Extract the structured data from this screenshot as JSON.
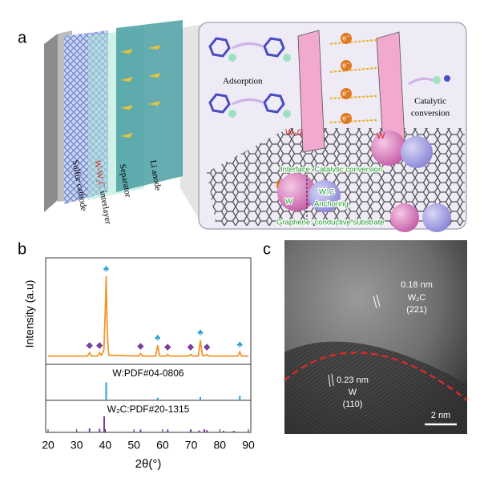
{
  "panel_a": {
    "label": "a",
    "layers": {
      "cathode": "Sulfur cathode",
      "interlayer_red": "W-W₂C",
      "interlayer": "interlayer",
      "separator": "Separator",
      "anode": "Li anode"
    },
    "adsorption": "Adsorption",
    "catalytic": [
      "Catalytic",
      "conversion"
    ],
    "w2c": "W₂C",
    "w": "W",
    "electron": "e⁻",
    "interface": "Interface: Catalytic conversion",
    "anchoring": "Anchoring",
    "graphene": "Graphene: conductive substrate",
    "w2c_green": "W₂C",
    "w_green": "W"
  },
  "chart_data": {
    "type": "line",
    "label": "b",
    "x_label": "2θ(°)",
    "y_label": "Intensity (a.u)",
    "color": "#f0962e",
    "x": [
      20,
      30,
      33.8,
      34.5,
      35.2,
      37.3,
      38.0,
      38.6,
      39.5,
      40.0,
      40.3,
      40.7,
      41.2,
      51.6,
      52.3,
      53,
      57.6,
      58.3,
      59,
      61.1,
      61.8,
      62.5,
      69.1,
      69.8,
      70.5,
      72.5,
      73.2,
      73.9,
      74.6,
      75.5,
      76.2,
      86.3,
      87.0,
      87.6,
      90
    ],
    "values": [
      5,
      5,
      5,
      9,
      5,
      5,
      9,
      6,
      12,
      60,
      100,
      30,
      6,
      5,
      8,
      5,
      5,
      18,
      5,
      5,
      7,
      5,
      5,
      7,
      5,
      5,
      24,
      6,
      5,
      7,
      5,
      5,
      10,
      5,
      5
    ],
    "xlim": [
      20,
      90
    ],
    "ylim": [
      0,
      100
    ],
    "xticks": [
      20,
      30,
      40,
      50,
      60,
      70,
      80,
      90
    ],
    "markers": [
      {
        "symbol": "♣",
        "color": "#2e9fd6",
        "x": [
          40.3,
          58.3,
          73.2,
          87.0
        ]
      },
      {
        "symbol": "◆",
        "color": "#7c3f9c",
        "x": [
          34.5,
          38.0,
          52.3,
          61.8,
          69.8,
          75.5
        ]
      }
    ],
    "references": [
      {
        "label": "W:PDF#04-0806",
        "color": "#2e9fd6",
        "x": [
          40.3,
          58.3,
          73.2,
          87.0
        ],
        "heights": [
          100,
          15,
          18,
          25
        ]
      },
      {
        "label": "W₂C:PDF#20-1315",
        "color": "#7c3f9c",
        "x": [
          34.5,
          38.0,
          39.6,
          52.3,
          61.8,
          69.8,
          72.8,
          74.6,
          75.5,
          81.3,
          84.9
        ],
        "heights": [
          25,
          22,
          100,
          18,
          18,
          16,
          12,
          20,
          14,
          10,
          10
        ]
      }
    ]
  },
  "panel_c": {
    "label": "c",
    "spacing1": "0.18 nm",
    "phase1": "W₂C",
    "plane1": "(221)",
    "spacing2": "0.23 nm",
    "phase2": "W",
    "plane2": "(110)",
    "scale": "2 nm"
  }
}
